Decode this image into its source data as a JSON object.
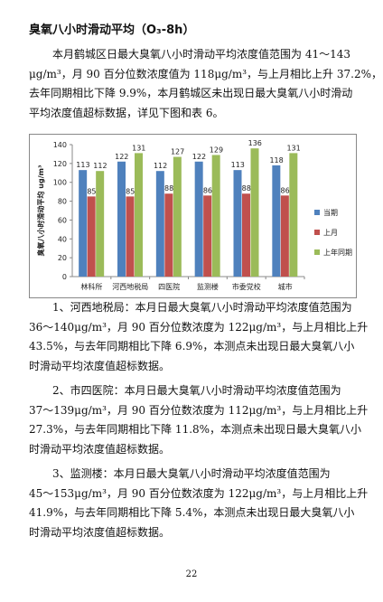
{
  "header": {
    "title": "臭氧八小时滑动平均（O₃-8h）"
  },
  "paragraphs": [
    [
      "本月鹤城区日最大臭氧八小时滑动平均浓度值范围为 41～143",
      "μg/m³，月 90 百分位数浓度值为 118μg/m³，与上月相比上升 37.2%，",
      "去年同期相比下降 9.9%，本月鹤城区未出现日最大臭氧八小时滑动",
      "平均浓度值超标数据，详见下图和表 6。"
    ],
    [
      "1、河西地税局：本月日最大臭氧八小时滑动平均浓度值范围为",
      "36～140μg/m³，月 90 百分位数浓度为 122μg/m³，与上月相比上升",
      "43.5%，与去年同期相比下降 6.9%，本测点未出现日最大臭氧八小",
      "时滑动平均浓度值超标数据。"
    ],
    [
      "2、市四医院：本月日最大臭氧八小时滑动平均浓度值范围为",
      "37～139μg/m³，月 90 百分位数浓度为 112μg/m³，与上月相比上升",
      "27.3%，与去年同期相比下降 11.8%，本测点未出现日最大臭氧八小",
      "时滑动平均浓度值超标数据。"
    ],
    [
      "3、监测楼：本月日最大臭氧八小时滑动平均浓度值范围为",
      "45～153μg/m³，月 90 百分位数浓度为 122μg/m³，与上月相比上升",
      "41.9%，与去年同期相比下降 5.4%，本测点未出现日最大臭氧八小",
      "时滑动平均浓度值超标数据。"
    ]
  ],
  "chart_data": {
    "type": "bar",
    "y_label": "臭氧八小时滑动平均 ug/m³",
    "categories": [
      "林科所",
      "河西地税局",
      "四医院",
      "监测楼",
      "市委党校",
      "城市"
    ],
    "series": [
      {
        "name": "当期",
        "color": "#4f81bd",
        "values": [
          113,
          122,
          112,
          122,
          113,
          118
        ]
      },
      {
        "name": "上月",
        "color": "#c0504d",
        "values": [
          85,
          85,
          88,
          86,
          88,
          86
        ]
      },
      {
        "name": "上年同期",
        "color": "#9bbb59",
        "values": [
          112,
          131,
          127,
          129,
          136,
          131
        ]
      }
    ],
    "ylim": [
      0,
      140
    ],
    "yticks": [
      0,
      20,
      40,
      60,
      80,
      100,
      120,
      140
    ],
    "grid": false,
    "legend": "right"
  },
  "footer": {
    "page_number": "22"
  }
}
